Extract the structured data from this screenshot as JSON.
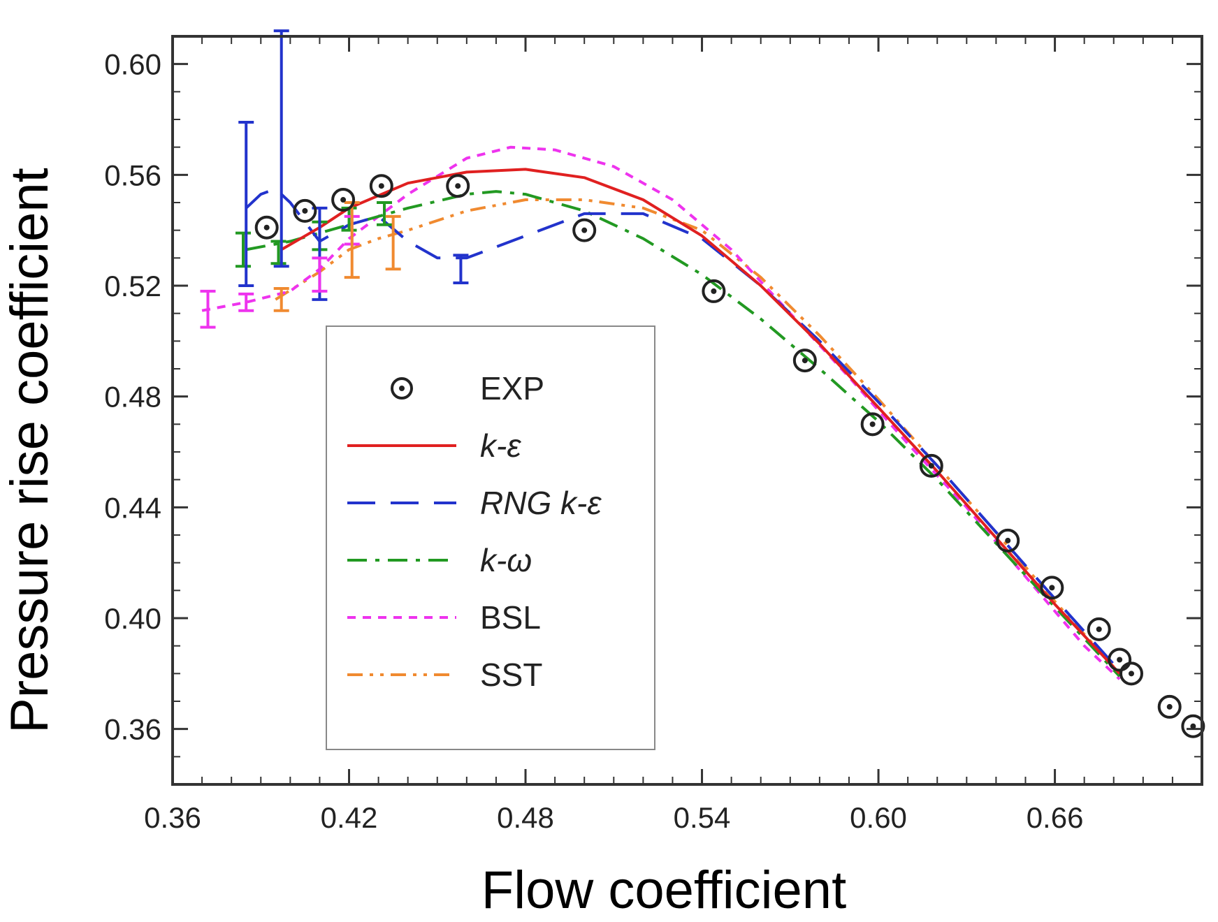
{
  "chart_data": {
    "type": "line",
    "xlabel": "Flow coefficient",
    "ylabel": "Pressure rise coefficient",
    "xlim": [
      0.36,
      0.71
    ],
    "ylim": [
      0.34,
      0.61
    ],
    "xticks": [
      0.36,
      0.42,
      0.48,
      0.54,
      0.6,
      0.66
    ],
    "xtick_labels": [
      "0.36",
      "0.42",
      "0.48",
      "0.54",
      "0.60",
      "0.66"
    ],
    "yticks": [
      0.36,
      0.4,
      0.44,
      0.48,
      0.52,
      0.56,
      0.6
    ],
    "ytick_labels": [
      "0.36",
      "0.40",
      "0.44",
      "0.48",
      "0.52",
      "0.56",
      "0.60"
    ],
    "legend_position": "center-left",
    "series": [
      {
        "name": "EXP",
        "style": "markers",
        "color": "#222222",
        "x": [
          0.392,
          0.405,
          0.418,
          0.431,
          0.457,
          0.5,
          0.544,
          0.575,
          0.598,
          0.618,
          0.644,
          0.659,
          0.675,
          0.682,
          0.686,
          0.699,
          0.707
        ],
        "y": [
          0.541,
          0.547,
          0.551,
          0.556,
          0.556,
          0.54,
          0.518,
          0.493,
          0.47,
          0.455,
          0.428,
          0.411,
          0.396,
          0.385,
          0.38,
          0.368,
          0.361
        ]
      },
      {
        "name": "k-ε",
        "style": "solid",
        "color": "#e02020",
        "x": [
          0.397,
          0.41,
          0.42,
          0.44,
          0.46,
          0.48,
          0.5,
          0.52,
          0.54,
          0.56,
          0.58,
          0.6,
          0.62,
          0.64,
          0.66,
          0.682
        ],
        "y": [
          0.533,
          0.541,
          0.548,
          0.557,
          0.561,
          0.562,
          0.559,
          0.551,
          0.538,
          0.52,
          0.499,
          0.476,
          0.453,
          0.429,
          0.405,
          0.38
        ]
      },
      {
        "name": "RNG k-ε",
        "style": "dashed",
        "color": "#2233cc",
        "x": [
          0.385,
          0.39,
          0.395,
          0.4,
          0.41,
          0.42,
          0.43,
          0.44,
          0.45,
          0.46,
          0.48,
          0.5,
          0.52,
          0.54,
          0.56,
          0.58,
          0.6,
          0.62,
          0.64,
          0.66,
          0.682
        ],
        "y": [
          0.548,
          0.553,
          0.555,
          0.55,
          0.536,
          0.542,
          0.545,
          0.536,
          0.53,
          0.53,
          0.538,
          0.546,
          0.546,
          0.537,
          0.52,
          0.5,
          0.478,
          0.455,
          0.431,
          0.407,
          0.381
        ]
      },
      {
        "name": "k-ω",
        "style": "dashdot",
        "color": "#229922",
        "x": [
          0.385,
          0.4,
          0.42,
          0.44,
          0.46,
          0.47,
          0.48,
          0.5,
          0.52,
          0.54,
          0.56,
          0.58,
          0.6,
          0.62,
          0.64,
          0.66,
          0.682
        ],
        "y": [
          0.533,
          0.536,
          0.542,
          0.548,
          0.553,
          0.554,
          0.553,
          0.547,
          0.537,
          0.524,
          0.508,
          0.49,
          0.471,
          0.45,
          0.427,
          0.404,
          0.379
        ]
      },
      {
        "name": "BSL",
        "style": "dotted",
        "color": "#ee33ee",
        "x": [
          0.37,
          0.385,
          0.4,
          0.41,
          0.42,
          0.44,
          0.46,
          0.475,
          0.49,
          0.51,
          0.53,
          0.55,
          0.57,
          0.59,
          0.61,
          0.63,
          0.65,
          0.67,
          0.682
        ],
        "y": [
          0.511,
          0.514,
          0.518,
          0.526,
          0.537,
          0.553,
          0.566,
          0.57,
          0.569,
          0.563,
          0.551,
          0.533,
          0.51,
          0.487,
          0.463,
          0.44,
          0.415,
          0.39,
          0.378
        ]
      },
      {
        "name": "SST",
        "style": "dashdotdot",
        "color": "#f08a30",
        "x": [
          0.395,
          0.41,
          0.42,
          0.43,
          0.44,
          0.46,
          0.48,
          0.5,
          0.52,
          0.54,
          0.56,
          0.58,
          0.6,
          0.62,
          0.64,
          0.66,
          0.682
        ],
        "y": [
          0.515,
          0.525,
          0.533,
          0.537,
          0.54,
          0.547,
          0.551,
          0.551,
          0.548,
          0.54,
          0.523,
          0.502,
          0.479,
          0.455,
          0.431,
          0.406,
          0.38
        ]
      }
    ],
    "error_bars": [
      {
        "series": "k-ω",
        "color": "#229922",
        "x": 0.384,
        "y": 0.533,
        "low": 0.527,
        "high": 0.539
      },
      {
        "series": "k-ω",
        "color": "#229922",
        "x": 0.396,
        "y": 0.532,
        "low": 0.528,
        "high": 0.536
      },
      {
        "series": "k-ω",
        "color": "#229922",
        "x": 0.41,
        "y": 0.538,
        "low": 0.533,
        "high": 0.543
      },
      {
        "series": "k-ω",
        "color": "#229922",
        "x": 0.42,
        "y": 0.544,
        "low": 0.54,
        "high": 0.548
      },
      {
        "series": "k-ω",
        "color": "#229922",
        "x": 0.432,
        "y": 0.546,
        "low": 0.542,
        "high": 0.55
      },
      {
        "series": "RNG k-ε",
        "color": "#2233cc",
        "x": 0.385,
        "y": 0.548,
        "low": 0.52,
        "high": 0.579
      },
      {
        "series": "RNG k-ε",
        "color": "#2233cc",
        "x": 0.397,
        "y": 0.56,
        "low": 0.527,
        "high": 0.612
      },
      {
        "series": "RNG k-ε",
        "color": "#2233cc",
        "x": 0.41,
        "y": 0.54,
        "low": 0.515,
        "high": 0.548
      },
      {
        "series": "RNG k-ε",
        "color": "#2233cc",
        "x": 0.458,
        "y": 0.526,
        "low": 0.521,
        "high": 0.531
      },
      {
        "series": "BSL",
        "color": "#ee33ee",
        "x": 0.372,
        "y": 0.511,
        "low": 0.505,
        "high": 0.518
      },
      {
        "series": "BSL",
        "color": "#ee33ee",
        "x": 0.385,
        "y": 0.514,
        "low": 0.511,
        "high": 0.517
      },
      {
        "series": "BSL",
        "color": "#ee33ee",
        "x": 0.41,
        "y": 0.524,
        "low": 0.518,
        "high": 0.53
      },
      {
        "series": "BSL",
        "color": "#ee33ee",
        "x": 0.421,
        "y": 0.54,
        "low": 0.535,
        "high": 0.545
      },
      {
        "series": "SST",
        "color": "#f08a30",
        "x": 0.397,
        "y": 0.515,
        "low": 0.511,
        "high": 0.519
      },
      {
        "series": "SST",
        "color": "#f08a30",
        "x": 0.421,
        "y": 0.53,
        "low": 0.523,
        "high": 0.55
      },
      {
        "series": "SST",
        "color": "#f08a30",
        "x": 0.435,
        "y": 0.535,
        "low": 0.526,
        "high": 0.545
      }
    ]
  }
}
